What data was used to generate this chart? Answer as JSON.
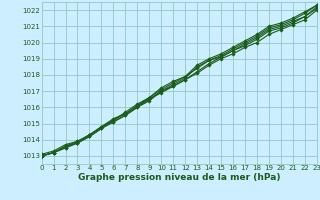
{
  "title": "Graphe pression niveau de la mer (hPa)",
  "background_color": "#cceeff",
  "grid_color": "#99cccc",
  "line_color": "#1a5c1a",
  "xlim": [
    0,
    23
  ],
  "ylim": [
    1012.5,
    1022.5
  ],
  "yticks": [
    1013,
    1014,
    1015,
    1016,
    1017,
    1018,
    1019,
    1020,
    1021,
    1022
  ],
  "xticks": [
    0,
    1,
    2,
    3,
    4,
    5,
    6,
    7,
    8,
    9,
    10,
    11,
    12,
    13,
    14,
    15,
    16,
    17,
    18,
    19,
    20,
    21,
    22,
    23
  ],
  "lines": [
    [
      1013.0,
      1013.2,
      1013.6,
      1013.8,
      1014.2,
      1014.7,
      1015.1,
      1015.5,
      1016.0,
      1016.4,
      1017.0,
      1017.3,
      1017.7,
      1018.2,
      1018.7,
      1019.1,
      1019.5,
      1019.9,
      1020.3,
      1020.8,
      1021.0,
      1021.3,
      1021.6,
      1022.2
    ],
    [
      1013.1,
      1013.3,
      1013.7,
      1013.9,
      1014.3,
      1014.8,
      1015.2,
      1015.6,
      1016.1,
      1016.5,
      1017.0,
      1017.4,
      1017.8,
      1018.5,
      1018.9,
      1019.2,
      1019.6,
      1020.0,
      1020.4,
      1020.9,
      1021.1,
      1021.4,
      1021.8,
      1022.3
    ],
    [
      1013.0,
      1013.2,
      1013.6,
      1013.9,
      1014.3,
      1014.8,
      1015.3,
      1015.6,
      1016.1,
      1016.6,
      1017.1,
      1017.5,
      1017.9,
      1018.6,
      1019.0,
      1019.3,
      1019.7,
      1020.1,
      1020.5,
      1021.0,
      1021.2,
      1021.5,
      1021.9,
      1022.3
    ],
    [
      1013.0,
      1013.2,
      1013.5,
      1013.8,
      1014.2,
      1014.7,
      1015.1,
      1015.5,
      1016.0,
      1016.5,
      1016.9,
      1017.3,
      1017.7,
      1018.1,
      1018.6,
      1019.0,
      1019.3,
      1019.7,
      1020.0,
      1020.5,
      1020.8,
      1021.1,
      1021.4,
      1022.0
    ],
    [
      1013.0,
      1013.2,
      1013.5,
      1013.8,
      1014.2,
      1014.7,
      1015.2,
      1015.7,
      1016.2,
      1016.6,
      1017.2,
      1017.6,
      1017.9,
      1018.4,
      1018.9,
      1019.1,
      1019.5,
      1019.8,
      1020.2,
      1020.7,
      1020.9,
      1021.2,
      1021.6,
      1022.1
    ]
  ],
  "label_fontsize": 5.0,
  "xlabel_fontsize": 6.5
}
